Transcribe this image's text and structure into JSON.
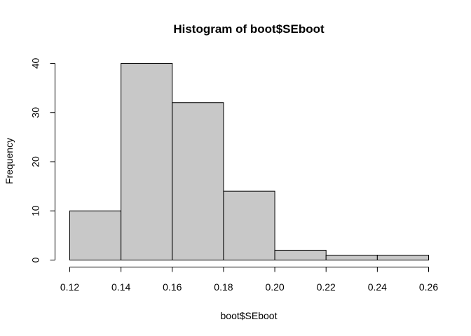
{
  "chart_data": {
    "type": "bar",
    "title": "Histogram of boot$SEboot",
    "xlabel": "boot$SEboot",
    "ylabel": "Frequency",
    "bin_edges": [
      0.12,
      0.14,
      0.16,
      0.18,
      0.2,
      0.22,
      0.24,
      0.26
    ],
    "values": [
      10,
      40,
      32,
      14,
      2,
      1,
      1
    ],
    "xlim": [
      0.12,
      0.26
    ],
    "ylim": [
      0,
      40
    ],
    "x_ticks": [
      "0.12",
      "0.14",
      "0.16",
      "0.18",
      "0.20",
      "0.22",
      "0.24",
      "0.26"
    ],
    "y_ticks": [
      "0",
      "10",
      "20",
      "30",
      "40"
    ],
    "grid": false,
    "legend": "none",
    "colors": {
      "bar_fill": "#c8c8c8",
      "bar_stroke": "#000000"
    }
  }
}
